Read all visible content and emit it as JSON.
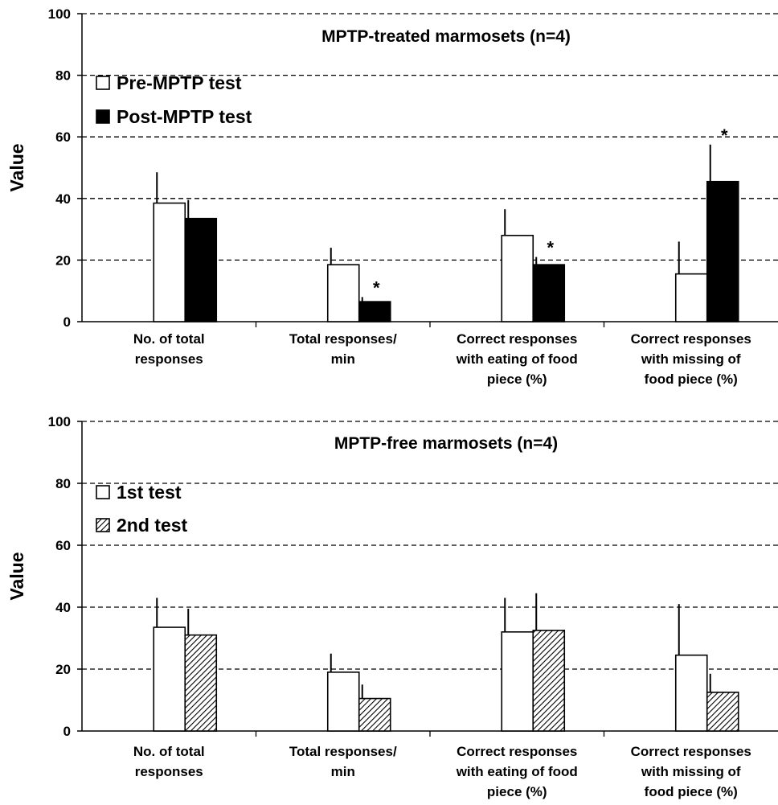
{
  "chart_data": [
    {
      "type": "bar",
      "title": "MPTP-treated marmosets (n=4)",
      "ylabel": "Value",
      "ylim": [
        0,
        100
      ],
      "yticks": [
        "0",
        "20",
        "40",
        "60",
        "80",
        "100"
      ],
      "grid": true,
      "legend_placement": "top-left",
      "categories": [
        [
          "No. of total",
          "responses"
        ],
        [
          "Total responses/",
          "min"
        ],
        [
          "Correct responses",
          "with eating of food",
          "piece (%)"
        ],
        [
          "Correct responses",
          "with missing of",
          "food piece (%)"
        ]
      ],
      "series": [
        {
          "name": "Pre-MPTP test",
          "fill": "white",
          "values": [
            38.5,
            18.5,
            28,
            15.5
          ],
          "errors": [
            10,
            5.5,
            8.5,
            10.5
          ],
          "significant": [
            false,
            false,
            false,
            false
          ]
        },
        {
          "name": "Post-MPTP test",
          "fill": "black",
          "values": [
            33.5,
            6.5,
            18.5,
            45.5
          ],
          "errors": [
            6,
            1.5,
            2.5,
            12
          ],
          "significant": [
            false,
            true,
            true,
            true
          ]
        }
      ],
      "annotation": "*"
    },
    {
      "type": "bar",
      "title": "MPTP-free marmosets (n=4)",
      "ylabel": "Value",
      "ylim": [
        0,
        100
      ],
      "yticks": [
        "0",
        "20",
        "40",
        "60",
        "80",
        "100"
      ],
      "grid": true,
      "legend_placement": "top-left",
      "categories": [
        [
          "No. of total",
          "responses"
        ],
        [
          "Total responses/",
          "min"
        ],
        [
          "Correct responses",
          "with eating of food",
          "piece (%)"
        ],
        [
          "Correct responses",
          "with missing of",
          "food piece (%)"
        ]
      ],
      "series": [
        {
          "name": "1st test",
          "fill": "white",
          "values": [
            33.5,
            19,
            32,
            24.5
          ],
          "errors": [
            9.5,
            6,
            11,
            16.5
          ],
          "significant": [
            false,
            false,
            false,
            false
          ]
        },
        {
          "name": "2nd test",
          "fill": "hatch",
          "values": [
            31,
            10.5,
            32.5,
            12.5
          ],
          "errors": [
            8.5,
            4.5,
            12,
            6
          ],
          "significant": [
            false,
            false,
            false,
            false
          ]
        }
      ],
      "annotation": "*"
    }
  ]
}
